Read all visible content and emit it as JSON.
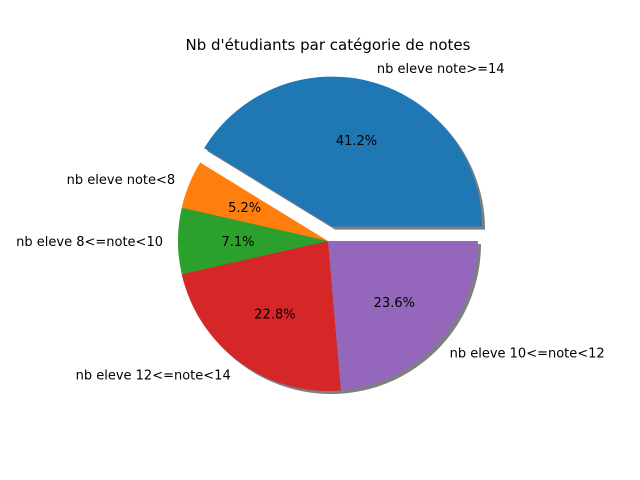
{
  "chart_data": {
    "type": "pie",
    "title": "Nb d'étudiants par catégorie de notes",
    "slices": [
      {
        "label": "nb eleve note>=14",
        "value": 41.2,
        "pct_label": "41.2%",
        "color": "#1f77b4",
        "exploded": true
      },
      {
        "label": "nb eleve note<8",
        "value": 5.2,
        "pct_label": "5.2%",
        "color": "#ff7f0e",
        "exploded": false
      },
      {
        "label": "nb eleve 8<=note<10",
        "value": 7.1,
        "pct_label": "7.1%",
        "color": "#2ca02c",
        "exploded": false
      },
      {
        "label": "nb eleve 12<=note<14",
        "value": 22.8,
        "pct_label": "22.8%",
        "color": "#d62728",
        "exploded": false
      },
      {
        "label": "nb eleve 10<=note<12",
        "value": 23.6,
        "pct_label": "23.6%",
        "color": "#9467bd",
        "exploded": false
      }
    ],
    "start_angle": 0,
    "direction": "counterclockwise",
    "shadow": true
  }
}
